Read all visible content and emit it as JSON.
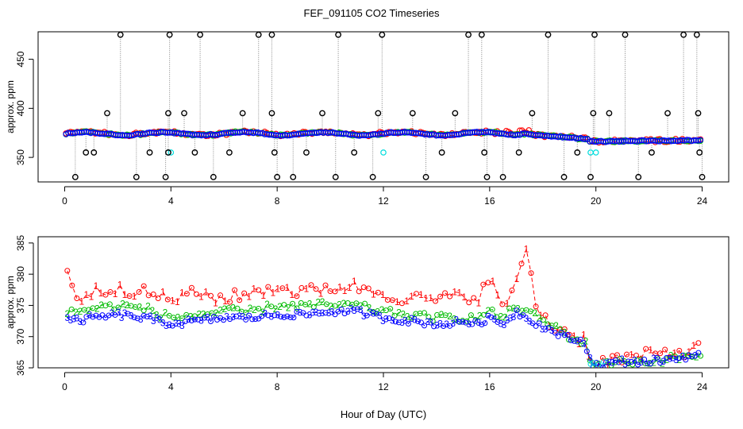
{
  "figure": {
    "title": "FEF_091105  CO2 Timeseries",
    "xlabel": "Hour of Day (UTC)"
  },
  "chart_data": [
    {
      "type": "scatter",
      "panel": "top",
      "ylabel": "approx. ppm",
      "xlim": [
        -1,
        25
      ],
      "ylim": [
        325,
        478
      ],
      "xticks": [
        0,
        4,
        8,
        12,
        16,
        20,
        24
      ],
      "yticks": [
        350,
        400,
        450
      ],
      "grid": false,
      "series": [
        {
          "name": "red",
          "color": "#ff0000",
          "marker": "circle"
        },
        {
          "name": "green",
          "color": "#00bb00",
          "marker": "circle"
        },
        {
          "name": "blue",
          "color": "#0000ff",
          "marker": "circle"
        },
        {
          "name": "cyan",
          "color": "#00dddd",
          "marker": "circle",
          "points": [
            [
              3.9,
              355
            ],
            [
              4.0,
              355
            ],
            [
              12.0,
              355
            ],
            [
              19.8,
              355
            ],
            [
              20.0,
              355
            ]
          ]
        },
        {
          "name": "black",
          "color": "#000000",
          "marker": "circle",
          "points": [
            [
              0.4,
              330
            ],
            [
              0.8,
              355
            ],
            [
              1.1,
              355
            ],
            [
              1.6,
              395
            ],
            [
              2.1,
              475
            ],
            [
              2.7,
              330
            ],
            [
              3.2,
              355
            ],
            [
              3.8,
              330
            ],
            [
              3.9,
              355
            ],
            [
              3.9,
              395
            ],
            [
              3.95,
              475
            ],
            [
              4.5,
              395
            ],
            [
              4.9,
              355
            ],
            [
              5.1,
              475
            ],
            [
              5.6,
              330
            ],
            [
              6.2,
              355
            ],
            [
              6.7,
              395
            ],
            [
              7.3,
              475
            ],
            [
              7.8,
              395
            ],
            [
              7.8,
              475
            ],
            [
              7.9,
              355
            ],
            [
              8.0,
              330
            ],
            [
              8.6,
              330
            ],
            [
              9.1,
              355
            ],
            [
              9.7,
              395
            ],
            [
              10.2,
              330
            ],
            [
              10.3,
              475
            ],
            [
              10.9,
              355
            ],
            [
              11.6,
              330
            ],
            [
              11.8,
              395
            ],
            [
              11.95,
              475
            ],
            [
              13.1,
              395
            ],
            [
              13.6,
              330
            ],
            [
              14.2,
              355
            ],
            [
              14.7,
              395
            ],
            [
              15.2,
              475
            ],
            [
              15.7,
              475
            ],
            [
              15.8,
              355
            ],
            [
              15.9,
              330
            ],
            [
              16.5,
              330
            ],
            [
              17.1,
              355
            ],
            [
              17.6,
              395
            ],
            [
              18.2,
              475
            ],
            [
              18.8,
              330
            ],
            [
              19.3,
              355
            ],
            [
              19.8,
              330
            ],
            [
              19.9,
              395
            ],
            [
              19.95,
              475
            ],
            [
              20.5,
              395
            ],
            [
              21.1,
              475
            ],
            [
              21.6,
              330
            ],
            [
              22.1,
              355
            ],
            [
              22.7,
              395
            ],
            [
              23.3,
              475
            ],
            [
              23.8,
              475
            ],
            [
              23.85,
              395
            ],
            [
              23.9,
              355
            ],
            [
              24.0,
              330
            ]
          ]
        }
      ]
    },
    {
      "type": "line",
      "panel": "bottom",
      "ylabel": "approx. ppm",
      "xlim": [
        -1,
        25
      ],
      "ylim": [
        365,
        386
      ],
      "xticks": [
        0,
        4,
        8,
        12,
        16,
        20,
        24
      ],
      "yticks": [
        365,
        370,
        375,
        380,
        385
      ],
      "grid": false,
      "series": [
        {
          "name": "1",
          "color": "#ff0000",
          "marker": "1",
          "linestyle": "dashed"
        },
        {
          "name": "2",
          "color": "#00bb00",
          "marker": "2",
          "linestyle": "dashed"
        },
        {
          "name": "3",
          "color": "#0000ff",
          "marker": "3",
          "linestyle": "dashed"
        },
        {
          "name": "cyan",
          "color": "#00dddd",
          "marker": "circle",
          "linestyle": "dashed"
        }
      ],
      "profile": {
        "x": [
          0,
          0.2,
          0.5,
          1.0,
          2.0,
          3.0,
          4.0,
          5.0,
          6.0,
          7.0,
          8.0,
          9.0,
          10.0,
          11.0,
          12.0,
          13.0,
          14.0,
          14.5,
          15.0,
          15.5,
          16.0,
          16.5,
          17.0,
          17.4,
          17.8,
          18.3,
          18.8,
          19.2,
          19.6,
          19.85,
          20.2,
          21.0,
          22.0,
          23.0,
          23.7
        ],
        "red": [
          381,
          380,
          376,
          377,
          378,
          377,
          376,
          377,
          376,
          377,
          378,
          377,
          378,
          378,
          377,
          376,
          376,
          376,
          377,
          376,
          379,
          375,
          378,
          384,
          374,
          372,
          371,
          370,
          369.5,
          366,
          366,
          366.5,
          367,
          367.5,
          368
        ],
        "green": [
          374,
          374,
          374,
          374.5,
          375,
          374.5,
          373,
          373.5,
          374,
          374,
          375,
          375,
          375,
          375,
          374,
          373.5,
          373,
          373,
          373,
          373,
          374,
          373,
          375,
          374,
          373,
          372,
          370.5,
          369.5,
          369,
          365.5,
          365.5,
          366,
          366,
          366.5,
          367
        ],
        "blue": [
          373,
          372.5,
          372.5,
          373,
          373.5,
          373,
          372,
          372.5,
          373,
          373,
          373.5,
          373.5,
          374,
          374,
          373,
          372.5,
          372,
          372,
          372.5,
          372,
          373,
          372,
          374,
          373,
          372,
          371,
          370,
          369.5,
          369,
          365.5,
          365.5,
          366,
          366,
          366.5,
          367
        ]
      }
    }
  ]
}
